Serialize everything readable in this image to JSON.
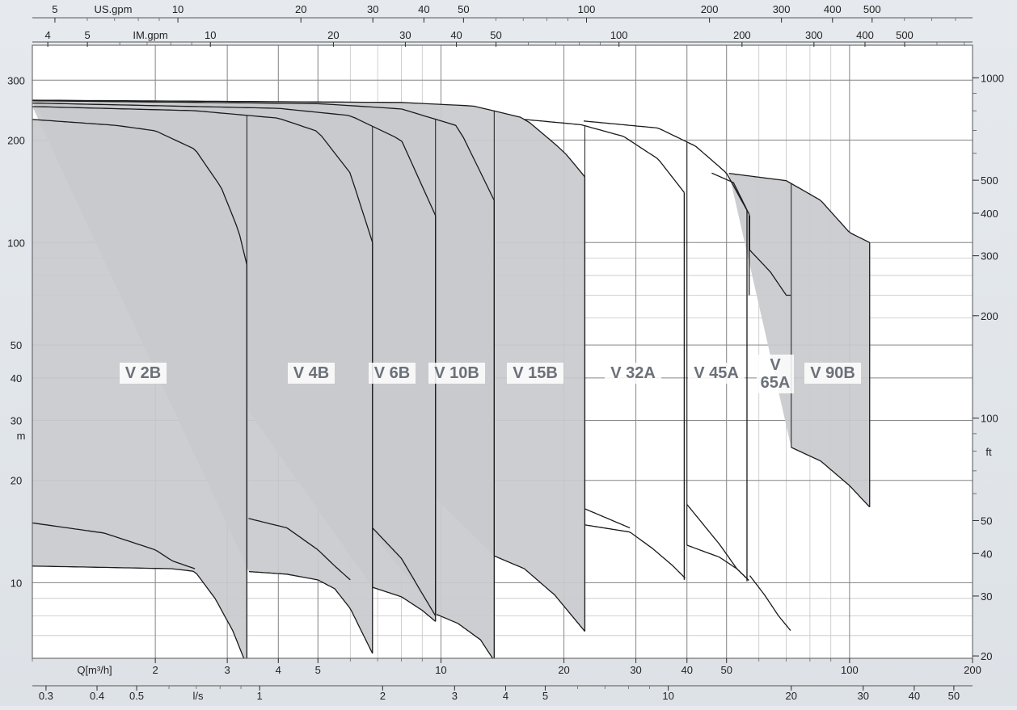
{
  "chart_data": {
    "type": "area",
    "title": "",
    "x_scale": "log",
    "y_scale": "log",
    "grid": true,
    "axes": {
      "x_bottom_m3h": {
        "label": "Q[m³/h]",
        "range": [
          1,
          200
        ],
        "ticks": [
          "2",
          "3",
          "4",
          "5",
          "10",
          "20",
          "30",
          "40",
          "50",
          "100",
          "200"
        ]
      },
      "x_bottom_ls": {
        "label": "l/s",
        "ticks": [
          "0.3",
          "0.4",
          "0.5",
          "1",
          "2",
          "3",
          "4",
          "5",
          "10",
          "20",
          "30",
          "40",
          "50"
        ]
      },
      "x_top_usgpm": {
        "label": "US.gpm",
        "ticks": [
          "5",
          "10",
          "20",
          "30",
          "40",
          "50",
          "100",
          "200",
          "300",
          "400",
          "500"
        ]
      },
      "x_top_imgpm": {
        "label": "IM.gpm",
        "ticks": [
          "4",
          "5",
          "10",
          "20",
          "30",
          "40",
          "50",
          "100",
          "200",
          "300",
          "400",
          "500"
        ]
      },
      "y_left_m": {
        "label": "m",
        "range": [
          6,
          380
        ],
        "ticks": [
          "10",
          "20",
          "30",
          "40",
          "50",
          "100",
          "200",
          "300"
        ]
      },
      "y_right_ft": {
        "label": "ft",
        "ticks": [
          "20",
          "30",
          "40",
          "50",
          "100",
          "200",
          "300",
          "400",
          "500",
          "1000"
        ]
      }
    },
    "series": [
      {
        "name": "V 2B",
        "shaded": true,
        "top": [
          [
            1,
            230
          ],
          [
            1.6,
            221
          ],
          [
            2,
            213
          ],
          [
            2.5,
            188
          ],
          [
            2.9,
            145
          ],
          [
            3.2,
            108
          ],
          [
            3.35,
            86
          ]
        ],
        "bottom": [
          [
            1,
            11.2
          ],
          [
            1.5,
            11.1
          ],
          [
            2.2,
            11
          ],
          [
            2.5,
            10.8
          ],
          [
            2.8,
            9
          ],
          [
            3.1,
            7.2
          ],
          [
            3.35,
            5.7
          ]
        ],
        "low_boundary": [
          [
            1,
            15
          ],
          [
            1.5,
            14
          ],
          [
            2,
            12.5
          ],
          [
            2.2,
            11.6
          ],
          [
            2.5,
            11
          ]
        ]
      },
      {
        "name": "V 4B",
        "shaded": true,
        "top": [
          [
            1,
            251
          ],
          [
            2.5,
            244
          ],
          [
            4,
            232
          ],
          [
            5,
            212
          ],
          [
            6,
            160
          ],
          [
            6.8,
            100
          ]
        ],
        "bottom": [
          [
            3.35,
            10.8
          ],
          [
            4.2,
            10.6
          ],
          [
            5,
            10.2
          ],
          [
            5.5,
            9.6
          ],
          [
            6,
            8.4
          ],
          [
            6.8,
            6.2
          ]
        ],
        "low_boundary": [
          [
            3.35,
            15.5
          ],
          [
            4.2,
            14.5
          ],
          [
            5,
            12.5
          ],
          [
            5.5,
            11.2
          ],
          [
            6,
            10.2
          ]
        ]
      },
      {
        "name": "V 6B",
        "shaded": true,
        "top": [
          [
            1,
            257
          ],
          [
            4,
            248
          ],
          [
            6,
            236
          ],
          [
            8,
            200
          ],
          [
            9.7,
            120
          ]
        ],
        "bottom": [
          [
            6.8,
            9.7
          ],
          [
            8,
            9.1
          ],
          [
            9,
            8.3
          ],
          [
            9.7,
            7.7
          ]
        ],
        "low_boundary": [
          [
            6.8,
            14.5
          ],
          [
            8,
            11.8
          ],
          [
            9,
            9.3
          ],
          [
            9.7,
            8
          ]
        ]
      },
      {
        "name": "V 10B",
        "shaded": true,
        "top": [
          [
            1,
            261
          ],
          [
            5,
            256
          ],
          [
            8,
            247
          ],
          [
            11,
            220
          ],
          [
            13.5,
            133
          ]
        ],
        "bottom": [
          [
            9.7,
            8.1
          ],
          [
            11,
            7.6
          ],
          [
            12.5,
            6.8
          ],
          [
            13.5,
            5.9
          ]
        ]
      },
      {
        "name": "V 15B",
        "shaded": true,
        "top": [
          [
            1,
            262
          ],
          [
            8,
            258
          ],
          [
            12,
            252
          ],
          [
            16,
            232
          ],
          [
            20,
            185
          ],
          [
            22.5,
            156
          ]
        ],
        "bottom": [
          [
            13.5,
            12
          ],
          [
            16,
            11
          ],
          [
            19,
            9.2
          ],
          [
            22.5,
            7.2
          ]
        ]
      },
      {
        "name": "V 32A",
        "shaded": false,
        "top": [
          [
            16,
            230
          ],
          [
            22,
            222
          ],
          [
            28,
            205
          ],
          [
            34,
            176
          ],
          [
            40,
            137
          ]
        ],
        "bottom": [
          [
            22.5,
            14.8
          ],
          [
            29,
            14.1
          ],
          [
            33,
            12.6
          ],
          [
            37,
            11.2
          ],
          [
            40,
            10.2
          ]
        ],
        "low_boundary": [
          [
            22.5,
            16.5
          ],
          [
            29,
            14.5
          ]
        ]
      },
      {
        "name": "V 45A",
        "shaded": false,
        "top": [
          [
            22,
            228
          ],
          [
            34,
            217
          ],
          [
            42,
            192
          ],
          [
            50,
            160
          ],
          [
            57,
            120
          ]
        ],
        "bottom": [
          [
            40,
            12.9
          ],
          [
            48,
            11.9
          ],
          [
            53,
            11
          ],
          [
            57,
            10.1
          ]
        ],
        "low_boundary": [
          [
            40,
            17
          ],
          [
            48,
            13
          ],
          [
            53,
            11
          ],
          [
            57,
            10.1
          ]
        ]
      },
      {
        "name": "V 65A",
        "shaded": false,
        "top": [
          [
            46,
            160
          ],
          [
            52,
            150
          ],
          [
            57,
            120
          ]
        ],
        "bottom": [
          [
            57,
            95
          ],
          [
            64,
            82
          ],
          [
            70,
            70
          ],
          [
            72,
            70
          ]
        ],
        "low_boundary": [
          [
            57,
            10.5
          ],
          [
            62,
            9.2
          ],
          [
            67,
            8
          ],
          [
            72,
            7.2
          ]
        ]
      },
      {
        "name": "V 90B",
        "shaded": true,
        "top": [
          [
            50,
            160
          ],
          [
            70,
            152
          ],
          [
            85,
            133
          ],
          [
            100,
            107
          ],
          [
            112,
            100
          ]
        ],
        "bottom": [
          [
            72,
            25
          ],
          [
            85,
            22.8
          ],
          [
            100,
            19.3
          ],
          [
            112,
            16.7
          ]
        ]
      }
    ],
    "model_labels": [
      "V 2B",
      "V 4B",
      "V 6B",
      "V 10B",
      "V 15B",
      "V 32A",
      "V 45A",
      "V\n65A",
      "V 90B"
    ]
  }
}
